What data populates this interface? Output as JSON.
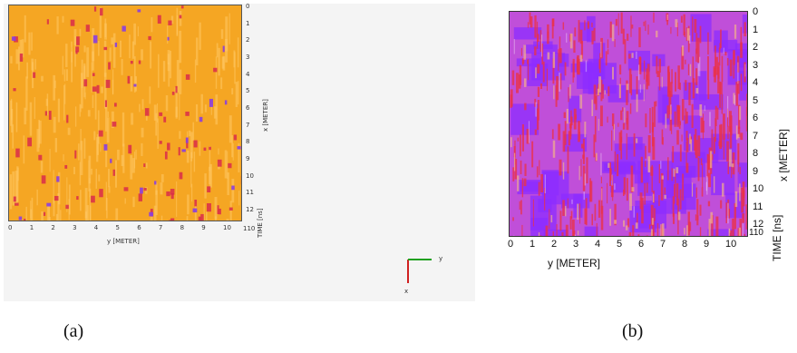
{
  "panel_a": {
    "caption": "(a)",
    "x_ticks": [
      "0",
      "1",
      "2",
      "3",
      "4",
      "5",
      "6",
      "7",
      "8",
      "9",
      "10"
    ],
    "right_ticks": [
      "0",
      "1",
      "2",
      "3",
      "4",
      "5",
      "6",
      "7",
      "8",
      "9",
      "10",
      "11",
      "12"
    ],
    "x_label": "y [METER]",
    "right_label": "x [METER]",
    "time_label": "TIME [ns]",
    "time_value": "110",
    "gizmo_y_label": "y",
    "gizmo_x_label": "x",
    "colors": {
      "background": "#f5a623",
      "red": "#d92b4a",
      "purple": "#8a3ee0"
    }
  },
  "panel_b": {
    "caption": "(b)",
    "x_ticks": [
      "0",
      "1",
      "2",
      "3",
      "4",
      "5",
      "6",
      "7",
      "8",
      "9",
      "10"
    ],
    "right_ticks": [
      "0",
      "1",
      "2",
      "3",
      "4",
      "5",
      "6",
      "7",
      "8",
      "9",
      "10",
      "11",
      "12"
    ],
    "x_label": "y [METER]",
    "right_label": "x [METER]",
    "time_label": "TIME [ns]",
    "time_value": "110",
    "colors": {
      "background": "#c04fd9",
      "red": "#e8324a",
      "purple": "#8c2cff",
      "peach": "#f2b08a"
    }
  }
}
